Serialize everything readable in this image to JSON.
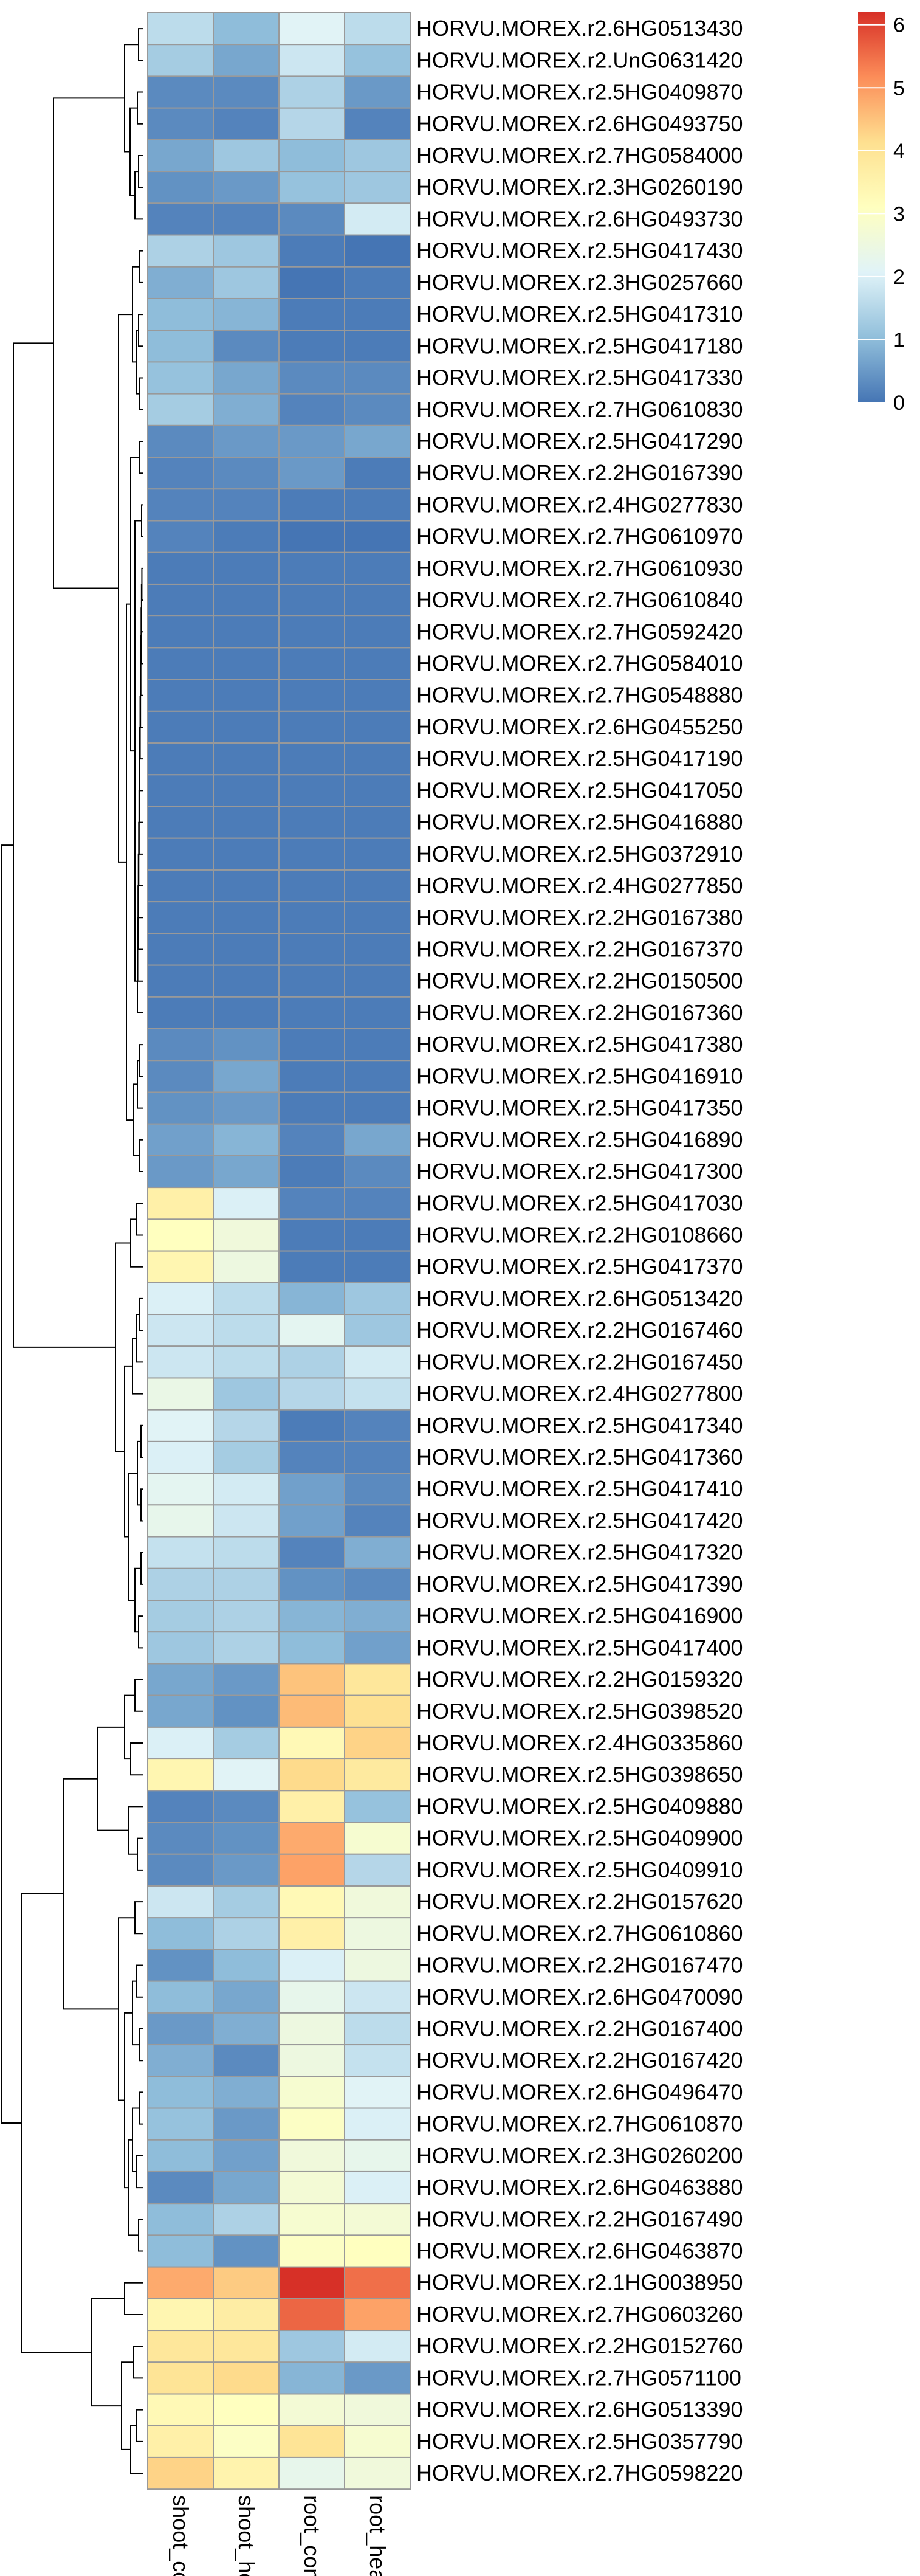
{
  "chart_data": {
    "type": "heatmap",
    "title": "",
    "xlabel": "",
    "ylabel": "",
    "columns": [
      "shoot_control",
      "shoot_heat",
      "root_control",
      "root_heat"
    ],
    "rows": [
      "HORVU.MOREX.r2.6HG0513430",
      "HORVU.MOREX.r2.UnG0631420",
      "HORVU.MOREX.r2.5HG0409870",
      "HORVU.MOREX.r2.6HG0493750",
      "HORVU.MOREX.r2.7HG0584000",
      "HORVU.MOREX.r2.3HG0260190",
      "HORVU.MOREX.r2.6HG0493730",
      "HORVU.MOREX.r2.5HG0417430",
      "HORVU.MOREX.r2.3HG0257660",
      "HORVU.MOREX.r2.5HG0417310",
      "HORVU.MOREX.r2.5HG0417180",
      "HORVU.MOREX.r2.5HG0417330",
      "HORVU.MOREX.r2.7HG0610830",
      "HORVU.MOREX.r2.5HG0417290",
      "HORVU.MOREX.r2.2HG0167390",
      "HORVU.MOREX.r2.4HG0277830",
      "HORVU.MOREX.r2.7HG0610970",
      "HORVU.MOREX.r2.7HG0610930",
      "HORVU.MOREX.r2.7HG0610840",
      "HORVU.MOREX.r2.7HG0592420",
      "HORVU.MOREX.r2.7HG0584010",
      "HORVU.MOREX.r2.7HG0548880",
      "HORVU.MOREX.r2.6HG0455250",
      "HORVU.MOREX.r2.5HG0417190",
      "HORVU.MOREX.r2.5HG0417050",
      "HORVU.MOREX.r2.5HG0416880",
      "HORVU.MOREX.r2.5HG0372910",
      "HORVU.MOREX.r2.4HG0277850",
      "HORVU.MOREX.r2.2HG0167380",
      "HORVU.MOREX.r2.2HG0167370",
      "HORVU.MOREX.r2.2HG0150500",
      "HORVU.MOREX.r2.2HG0167360",
      "HORVU.MOREX.r2.5HG0417380",
      "HORVU.MOREX.r2.5HG0416910",
      "HORVU.MOREX.r2.5HG0417350",
      "HORVU.MOREX.r2.5HG0416890",
      "HORVU.MOREX.r2.5HG0417300",
      "HORVU.MOREX.r2.5HG0417030",
      "HORVU.MOREX.r2.2HG0108660",
      "HORVU.MOREX.r2.5HG0417370",
      "HORVU.MOREX.r2.6HG0513420",
      "HORVU.MOREX.r2.2HG0167460",
      "HORVU.MOREX.r2.2HG0167450",
      "HORVU.MOREX.r2.4HG0277800",
      "HORVU.MOREX.r2.5HG0417340",
      "HORVU.MOREX.r2.5HG0417360",
      "HORVU.MOREX.r2.5HG0417410",
      "HORVU.MOREX.r2.5HG0417420",
      "HORVU.MOREX.r2.5HG0417320",
      "HORVU.MOREX.r2.5HG0417390",
      "HORVU.MOREX.r2.5HG0416900",
      "HORVU.MOREX.r2.5HG0417400",
      "HORVU.MOREX.r2.2HG0159320",
      "HORVU.MOREX.r2.5HG0398520",
      "HORVU.MOREX.r2.4HG0335860",
      "HORVU.MOREX.r2.5HG0398650",
      "HORVU.MOREX.r2.5HG0409880",
      "HORVU.MOREX.r2.5HG0409900",
      "HORVU.MOREX.r2.5HG0409910",
      "HORVU.MOREX.r2.2HG0157620",
      "HORVU.MOREX.r2.7HG0610860",
      "HORVU.MOREX.r2.2HG0167470",
      "HORVU.MOREX.r2.6HG0470090",
      "HORVU.MOREX.r2.2HG0167400",
      "HORVU.MOREX.r2.2HG0167420",
      "HORVU.MOREX.r2.6HG0496470",
      "HORVU.MOREX.r2.7HG0610870",
      "HORVU.MOREX.r2.3HG0260200",
      "HORVU.MOREX.r2.6HG0463880",
      "HORVU.MOREX.r2.2HG0167490",
      "HORVU.MOREX.r2.6HG0463870",
      "HORVU.MOREX.r2.1HG0038950",
      "HORVU.MOREX.r2.7HG0603260",
      "HORVU.MOREX.r2.2HG0152760",
      "HORVU.MOREX.r2.7HG0571100",
      "HORVU.MOREX.r2.6HG0513390",
      "HORVU.MOREX.r2.5HG0357790",
      "HORVU.MOREX.r2.7HG0598220"
    ],
    "values": [
      [
        1.6,
        1.0,
        2.1,
        1.6
      ],
      [
        1.3,
        0.7,
        1.8,
        1.1
      ],
      [
        0.3,
        0.3,
        1.4,
        0.5
      ],
      [
        0.3,
        0.2,
        1.5,
        0.2
      ],
      [
        0.7,
        1.2,
        1.0,
        1.2
      ],
      [
        0.4,
        0.5,
        1.1,
        1.2
      ],
      [
        0.2,
        0.2,
        0.3,
        1.9
      ],
      [
        1.4,
        1.2,
        0.1,
        0.0
      ],
      [
        0.8,
        1.2,
        0.0,
        0.1
      ],
      [
        1.0,
        0.9,
        0.1,
        0.1
      ],
      [
        1.0,
        0.3,
        0.1,
        0.1
      ],
      [
        1.1,
        0.7,
        0.3,
        0.3
      ],
      [
        1.3,
        0.8,
        0.2,
        0.3
      ],
      [
        0.3,
        0.5,
        0.5,
        0.7
      ],
      [
        0.2,
        0.3,
        0.5,
        0.1
      ],
      [
        0.2,
        0.2,
        0.1,
        0.1
      ],
      [
        0.2,
        0.1,
        0.0,
        0.0
      ],
      [
        0.1,
        0.1,
        0.1,
        0.1
      ],
      [
        0.1,
        0.1,
        0.1,
        0.1
      ],
      [
        0.1,
        0.1,
        0.1,
        0.1
      ],
      [
        0.1,
        0.1,
        0.1,
        0.1
      ],
      [
        0.1,
        0.1,
        0.1,
        0.1
      ],
      [
        0.1,
        0.1,
        0.1,
        0.1
      ],
      [
        0.1,
        0.1,
        0.1,
        0.1
      ],
      [
        0.1,
        0.1,
        0.1,
        0.1
      ],
      [
        0.1,
        0.1,
        0.1,
        0.1
      ],
      [
        0.1,
        0.1,
        0.1,
        0.1
      ],
      [
        0.1,
        0.1,
        0.1,
        0.1
      ],
      [
        0.1,
        0.1,
        0.1,
        0.1
      ],
      [
        0.1,
        0.1,
        0.1,
        0.1
      ],
      [
        0.1,
        0.1,
        0.1,
        0.1
      ],
      [
        0.1,
        0.1,
        0.1,
        0.1
      ],
      [
        0.3,
        0.4,
        0.1,
        0.1
      ],
      [
        0.3,
        0.7,
        0.1,
        0.1
      ],
      [
        0.4,
        0.5,
        0.1,
        0.1
      ],
      [
        0.6,
        0.9,
        0.2,
        0.7
      ],
      [
        0.5,
        0.7,
        0.1,
        0.3
      ],
      [
        3.6,
        2.0,
        0.2,
        0.2
      ],
      [
        3.1,
        2.6,
        0.1,
        0.1
      ],
      [
        3.4,
        2.5,
        0.1,
        0.1
      ],
      [
        2.0,
        1.6,
        0.9,
        1.2
      ],
      [
        1.8,
        1.6,
        2.2,
        1.2
      ],
      [
        1.8,
        1.6,
        1.4,
        1.9
      ],
      [
        2.4,
        1.2,
        1.5,
        1.7
      ],
      [
        2.1,
        1.5,
        0.1,
        0.2
      ],
      [
        2.0,
        1.3,
        0.2,
        0.2
      ],
      [
        2.2,
        1.9,
        0.6,
        0.3
      ],
      [
        2.3,
        1.8,
        0.6,
        0.2
      ],
      [
        1.7,
        1.6,
        0.2,
        0.8
      ],
      [
        1.4,
        1.4,
        0.4,
        0.3
      ],
      [
        1.3,
        1.4,
        0.9,
        0.8
      ],
      [
        1.2,
        1.4,
        1.0,
        0.6
      ],
      [
        0.7,
        0.5,
        4.5,
        3.9
      ],
      [
        0.7,
        0.4,
        4.6,
        4.1
      ],
      [
        2.0,
        1.3,
        3.3,
        4.3
      ],
      [
        3.4,
        2.1,
        4.2,
        3.8
      ],
      [
        0.2,
        0.3,
        3.6,
        1.1
      ],
      [
        0.3,
        0.4,
        4.8,
        2.8
      ],
      [
        0.3,
        0.5,
        4.9,
        1.5
      ],
      [
        1.8,
        1.3,
        3.3,
        2.6
      ],
      [
        1.0,
        1.4,
        3.6,
        2.5
      ],
      [
        0.4,
        1.0,
        2.0,
        2.5
      ],
      [
        1.0,
        0.7,
        2.3,
        1.8
      ],
      [
        0.5,
        0.8,
        2.5,
        1.6
      ],
      [
        0.8,
        0.3,
        2.5,
        1.7
      ],
      [
        1.0,
        0.8,
        2.8,
        2.1
      ],
      [
        1.1,
        0.5,
        3.0,
        2.0
      ],
      [
        1.0,
        0.6,
        2.6,
        2.3
      ],
      [
        0.3,
        0.7,
        2.7,
        2.0
      ],
      [
        1.0,
        1.4,
        2.8,
        2.7
      ],
      [
        1.0,
        0.4,
        3.0,
        3.1
      ],
      [
        4.8,
        4.4,
        6.2,
        5.5
      ],
      [
        3.4,
        3.7,
        5.6,
        4.9
      ],
      [
        3.9,
        3.9,
        1.2,
        1.9
      ],
      [
        4.0,
        4.2,
        0.9,
        0.5
      ],
      [
        3.3,
        3.1,
        2.7,
        2.6
      ],
      [
        3.6,
        3.0,
        4.0,
        2.8
      ],
      [
        4.3,
        3.5,
        2.3,
        2.6
      ]
    ],
    "scale": {
      "min": 0,
      "max": 6.2
    },
    "colorbar_ticks": [
      0,
      1,
      2,
      3,
      4,
      5,
      6
    ],
    "colors": [
      "#4575b4",
      "#91bfdb",
      "#e0f3f8",
      "#ffffbf",
      "#fee090",
      "#fc8d59",
      "#d73027"
    ],
    "cell_border_color": "#999999",
    "dendrogram_color": "#000000"
  }
}
